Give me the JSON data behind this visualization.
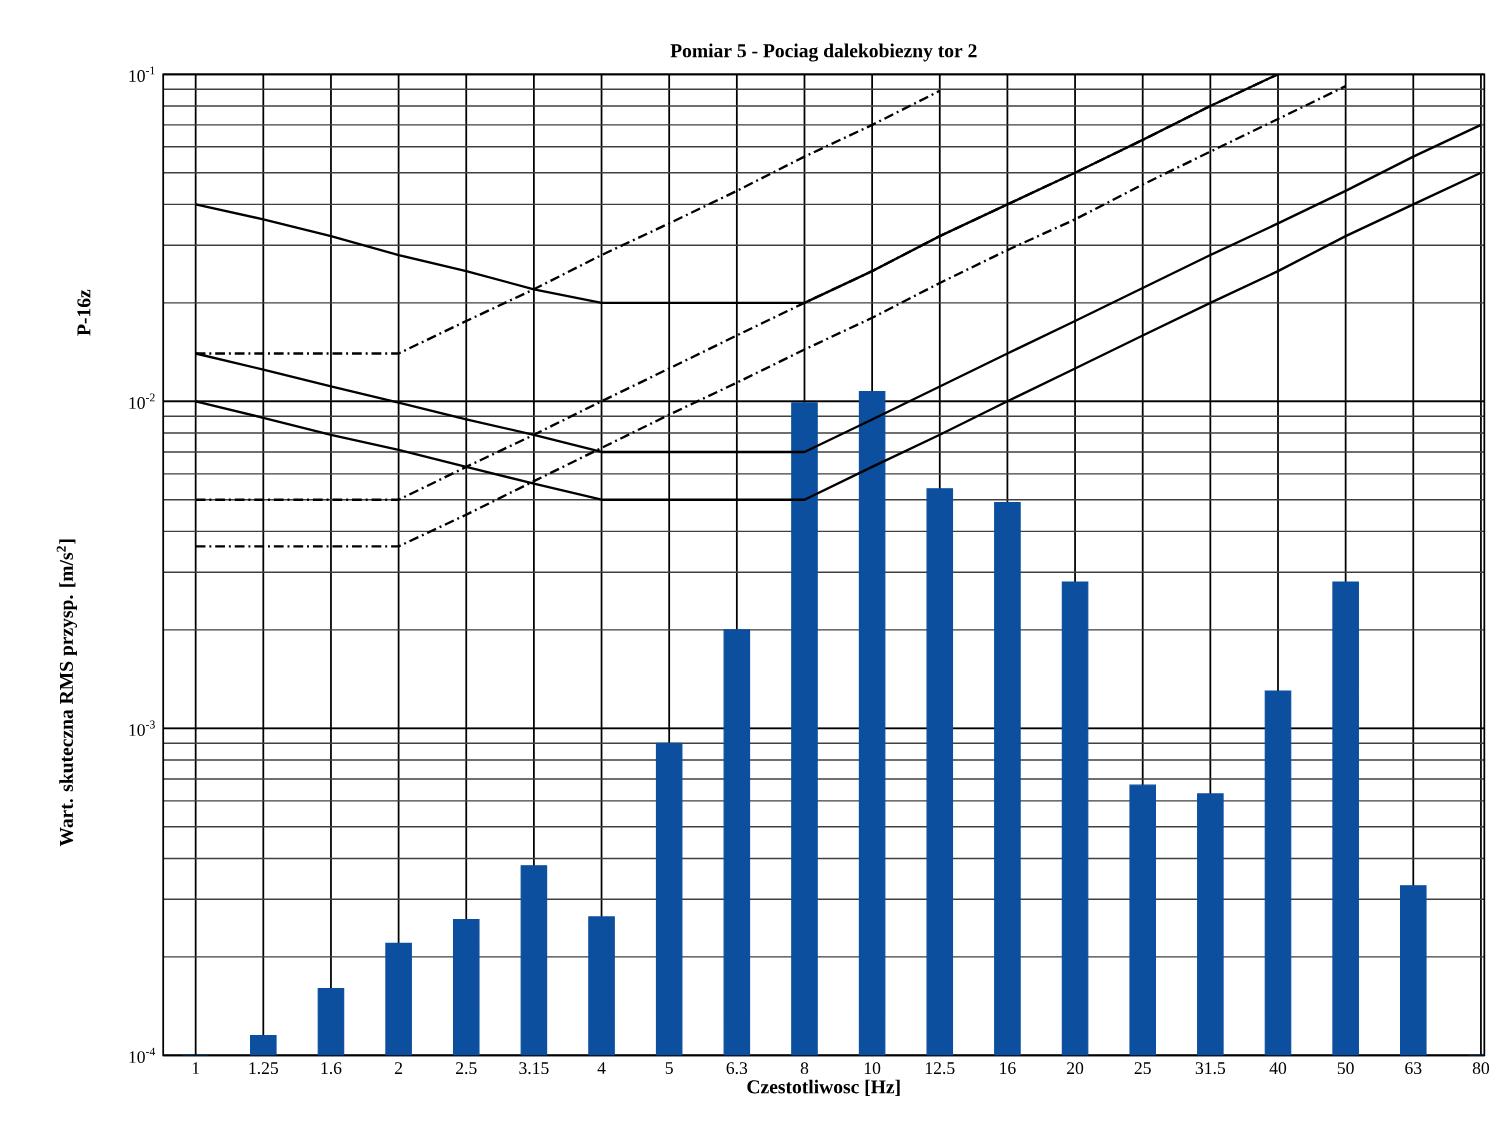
{
  "chart_data": {
    "type": "bar",
    "title": "Pomiar 5 - Pociag dalekobiezny tor 2",
    "xlabel": "Czestotliwosc [Hz]",
    "ylabel": "Wart. skuteczna RMS przysp. [m/s$^{2}$]",
    "annotations": [
      "P-16z"
    ],
    "categories": [
      "1",
      "1.25",
      "1.6",
      "2",
      "2.5",
      "3.15",
      "4",
      "5",
      "6.3",
      "8",
      "10",
      "12.5",
      "16",
      "20",
      "25",
      "31.5",
      "40",
      "50",
      "63",
      "80"
    ],
    "log": "y",
    "grid": true,
    "ylim": [
      0.0001,
      0.1
    ],
    "yticks": [
      {
        "value": 0.0001,
        "label": "10$^{-4}$"
      },
      {
        "value": 0.001,
        "label": "10$^{-3}$"
      },
      {
        "value": 0.01,
        "label": "10$^{-2}$"
      },
      {
        "value": 0.1,
        "label": "10$^{-1}$"
      }
    ],
    "series": [
      {
        "color": "#0b4f9e",
        "values": [
          0.0001,
          0.000115,
          0.00016,
          0.00022,
          0.00026,
          0.00038,
          0.000265,
          0.0009,
          0.002,
          0.0099,
          0.0107,
          0.0054,
          0.0049,
          0.0028,
          0.00067,
          0.00063,
          0.0013,
          0.0028,
          0.00033,
          0.0001
        ]
      },
      {
        "type": "line",
        "color": "#000000",
        "line_style": "solid",
        "values": [
          0.04,
          0.036,
          0.032,
          0.028,
          0.025,
          0.022,
          0.02,
          0.02,
          0.02,
          0.02,
          0.025,
          0.032,
          0.04,
          0.05,
          0.063,
          0.08,
          0.1,
          null,
          null,
          null
        ]
      },
      {
        "type": "line",
        "color": "#000000",
        "line_style": "solid",
        "values": [
          0.014,
          0.0125,
          0.0111,
          0.0099,
          0.0088,
          0.0079,
          0.007,
          0.007,
          0.007,
          0.007,
          0.0088,
          0.0111,
          0.014,
          0.0176,
          0.0222,
          0.028,
          0.035,
          0.044,
          0.056,
          0.07
        ]
      },
      {
        "type": "line",
        "color": "#000000",
        "line_style": "solid",
        "values": [
          0.01,
          0.0089,
          0.0079,
          0.0071,
          0.0063,
          0.0056,
          0.005,
          0.005,
          0.005,
          0.005,
          0.0063,
          0.0079,
          0.01,
          0.0126,
          0.0159,
          0.02,
          0.025,
          0.032,
          0.04,
          0.05
        ]
      },
      {
        "type": "line",
        "color": "#000000",
        "line_style": "dashed",
        "values": [
          0.014,
          0.014,
          0.014,
          0.014,
          0.0176,
          0.022,
          0.028,
          0.035,
          0.044,
          0.056,
          0.07,
          0.089,
          null,
          null,
          null,
          null,
          null,
          null,
          null,
          null
        ]
      },
      {
        "type": "line",
        "color": "#000000",
        "line_style": "dashed",
        "values": [
          0.005,
          0.005,
          0.005,
          0.005,
          0.0063,
          0.0079,
          0.01,
          0.0126,
          0.0159,
          0.02,
          0.025,
          0.032,
          0.04,
          0.05,
          0.063,
          0.08,
          0.1,
          null,
          null,
          null
        ]
      },
      {
        "type": "line",
        "color": "#000000",
        "line_style": "dashed",
        "values": [
          0.0036,
          0.0036,
          0.0036,
          0.0036,
          0.0045,
          0.0057,
          0.0072,
          0.0091,
          0.0114,
          0.0144,
          0.018,
          0.023,
          0.029,
          0.036,
          0.046,
          0.058,
          0.073,
          0.092,
          null,
          null
        ]
      }
    ]
  }
}
